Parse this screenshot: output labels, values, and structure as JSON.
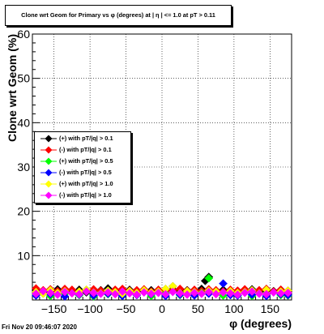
{
  "chart_data": {
    "type": "scatter",
    "title": "Clone wrt Geom for Primary vs φ (degrees) at | η | <= 1.0 at pT > 0.11",
    "xlabel": "φ (degrees)",
    "ylabel": "Clone wrt Geom (%)",
    "xlim": [
      -180,
      180
    ],
    "ylim": [
      0,
      60
    ],
    "xticks": [
      -150,
      -100,
      -50,
      0,
      50,
      100,
      150
    ],
    "yticks": [
      10,
      20,
      30,
      40,
      50,
      60
    ],
    "grid": true,
    "legend_position": "left-middle",
    "series": [
      {
        "name": "(+) with pT/|q| > 0.1",
        "color": "#000000",
        "marker": "diamond",
        "x": [
          -175,
          -165,
          -155,
          -145,
          -135,
          -125,
          -115,
          -105,
          -95,
          -85,
          -75,
          -65,
          -55,
          -45,
          -35,
          -25,
          -15,
          -5,
          5,
          15,
          25,
          35,
          45,
          55,
          60,
          65,
          75,
          85,
          95,
          105,
          115,
          125,
          135,
          145,
          155,
          165,
          175
        ],
        "y": [
          2.2,
          1.8,
          2.0,
          2.4,
          1.9,
          2.1,
          2.3,
          1.7,
          2.0,
          2.2,
          2.6,
          2.1,
          1.9,
          2.3,
          2.0,
          1.8,
          2.2,
          2.0,
          2.1,
          2.4,
          1.9,
          2.2,
          2.0,
          2.5,
          4.3,
          5.2,
          2.1,
          2.3,
          1.9,
          2.0,
          2.2,
          2.4,
          1.8,
          2.1,
          2.0,
          2.3,
          1.9
        ]
      },
      {
        "name": "(-) with pT/|q| > 0.1",
        "color": "#ff0000",
        "marker": "diamond",
        "x": [
          -175,
          -165,
          -155,
          -145,
          -135,
          -125,
          -115,
          -105,
          -95,
          -85,
          -75,
          -65,
          -55,
          -45,
          -35,
          -25,
          -15,
          -5,
          5,
          15,
          25,
          35,
          45,
          55,
          65,
          75,
          85,
          95,
          105,
          115,
          125,
          135,
          145,
          155,
          165,
          175
        ],
        "y": [
          2.6,
          2.2,
          2.4,
          2.0,
          2.5,
          2.3,
          1.9,
          2.2,
          2.4,
          2.1,
          2.0,
          2.3,
          2.5,
          2.1,
          2.2,
          2.4,
          1.9,
          2.3,
          2.0,
          2.2,
          2.5,
          2.1,
          2.3,
          2.0,
          2.4,
          2.2,
          1.9,
          2.3,
          2.1,
          2.4,
          2.0,
          2.2,
          2.5,
          1.9,
          2.3,
          2.1
        ]
      },
      {
        "name": "(+) with pT/|q| > 0.5",
        "color": "#00ff00",
        "marker": "diamond",
        "x": [
          -175,
          -155,
          -135,
          -115,
          -95,
          -75,
          -55,
          -35,
          -15,
          5,
          25,
          45,
          55,
          65,
          85,
          105,
          125,
          145,
          165,
          175
        ],
        "y": [
          1.2,
          0.9,
          1.4,
          1.1,
          0.8,
          1.3,
          1.0,
          1.2,
          0.9,
          1.5,
          1.1,
          1.3,
          1.6,
          4.9,
          1.0,
          1.2,
          0.9,
          1.3,
          1.1,
          1.0
        ]
      },
      {
        "name": "(-) with pT/|q| > 0.5",
        "color": "#0000ff",
        "marker": "diamond",
        "x": [
          -175,
          -155,
          -135,
          -115,
          -95,
          -75,
          -55,
          -35,
          -15,
          5,
          25,
          45,
          65,
          85,
          95,
          105,
          125,
          145,
          165,
          175
        ],
        "y": [
          1.0,
          1.3,
          0.8,
          1.2,
          1.0,
          1.4,
          0.9,
          1.1,
          1.3,
          0.9,
          1.2,
          1.0,
          1.4,
          3.7,
          1.1,
          1.0,
          1.2,
          0.9,
          1.3,
          1.1
        ]
      },
      {
        "name": "(+) with pT/|q| > 1.0",
        "color": "#ffff00",
        "marker": "diamond",
        "x": [
          -175,
          -165,
          -155,
          -145,
          -135,
          -125,
          -115,
          -105,
          -95,
          -85,
          -75,
          -65,
          -55,
          -45,
          -35,
          -25,
          -15,
          -5,
          5,
          15,
          25,
          35,
          45,
          55,
          65,
          75,
          85,
          95,
          105,
          115,
          125,
          135,
          145,
          155,
          165,
          175
        ],
        "y": [
          1.8,
          1.4,
          2.2,
          1.6,
          2.0,
          1.5,
          1.9,
          2.3,
          1.7,
          1.5,
          2.1,
          1.8,
          1.4,
          2.0,
          1.6,
          2.2,
          1.7,
          1.9,
          2.5,
          3.1,
          1.6,
          2.0,
          1.8,
          1.5,
          2.1,
          1.9,
          1.7,
          2.0,
          1.6,
          1.8,
          2.2,
          1.5,
          2.3,
          1.7,
          1.9,
          2.1
        ]
      },
      {
        "name": "(-) with pT/|q| > 1.0",
        "color": "#ff00ff",
        "marker": "diamond",
        "x": [
          -175,
          -165,
          -155,
          -145,
          -135,
          -125,
          -115,
          -105,
          -95,
          -85,
          -75,
          -65,
          -55,
          -45,
          -35,
          -25,
          -15,
          -5,
          5,
          15,
          25,
          35,
          45,
          55,
          65,
          75,
          85,
          95,
          105,
          115,
          125,
          135,
          145,
          155,
          165,
          175
        ],
        "y": [
          1.4,
          2.0,
          1.6,
          1.2,
          1.8,
          1.5,
          1.3,
          1.9,
          1.6,
          1.4,
          1.7,
          1.3,
          1.9,
          1.5,
          1.2,
          1.7,
          1.4,
          1.6,
          1.3,
          1.8,
          1.5,
          1.2,
          1.6,
          1.4,
          1.8,
          1.3,
          1.7,
          1.5,
          1.2,
          1.6,
          1.9,
          1.4,
          1.3,
          1.7,
          1.5,
          1.6
        ]
      }
    ]
  },
  "footer": "Fri Nov 20 09:46:07 2020"
}
